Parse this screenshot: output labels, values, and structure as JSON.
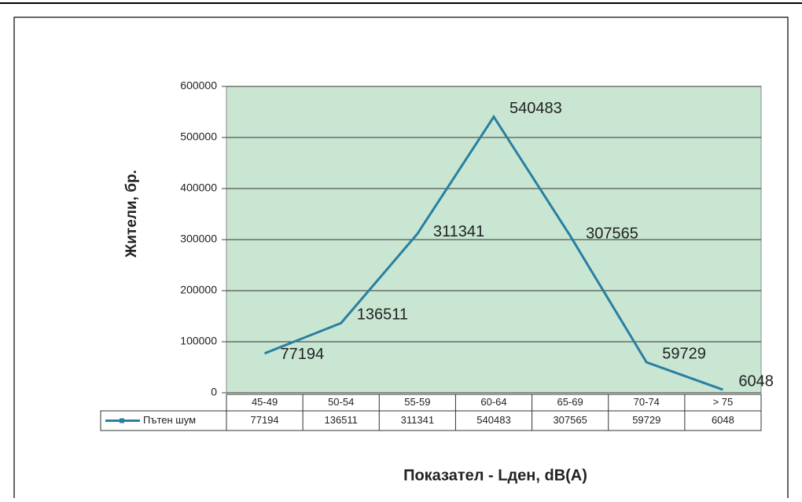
{
  "chart_data": {
    "type": "line",
    "x_label": "Показател - Lден, dB(A)",
    "y_label": "Жители, бр.",
    "categories": [
      "45-49",
      "50-54",
      "55-59",
      "60-64",
      "65-69",
      "70-74",
      "> 75"
    ],
    "series": [
      {
        "name": "Пътен шум",
        "color": "#2a7fa0",
        "values": [
          77194,
          136511,
          311341,
          540483,
          307565,
          59729,
          6048
        ]
      }
    ],
    "ylim": [
      0,
      600000
    ],
    "yticks": [
      0,
      100000,
      200000,
      300000,
      400000,
      500000,
      600000
    ],
    "grid": true,
    "plot_background": "#c9e6d3"
  }
}
